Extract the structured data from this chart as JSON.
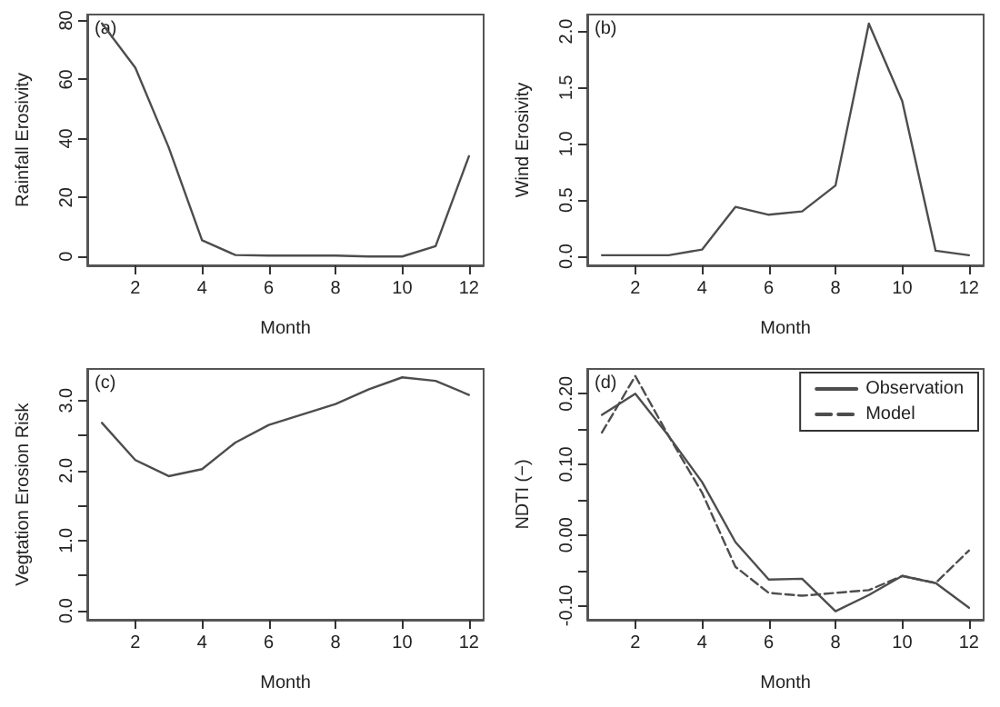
{
  "chart_data": [
    {
      "type": "line",
      "x": [
        1,
        2,
        3,
        4,
        5,
        6,
        7,
        8,
        9,
        10,
        11,
        12
      ],
      "xlabel": "Month",
      "ylabel": "Rainfall Erosivity",
      "annotations": [
        "(a)"
      ],
      "series": [
        {
          "color": "#4d4d4d",
          "values": [
            79,
            64,
            37,
            5.5,
            0.5,
            0.3,
            0.3,
            0.3,
            0,
            0,
            3.5,
            34
          ]
        }
      ],
      "xlim": [
        0.56,
        12.44
      ],
      "xticks": [
        2,
        4,
        6,
        8,
        10,
        12
      ],
      "ylim": [
        -3,
        82
      ],
      "yticks": [
        0,
        20,
        40,
        60,
        80
      ],
      "grid": false,
      "legend": false,
      "marker": "none",
      "line_style": "solid"
    },
    {
      "type": "line",
      "x": [
        1,
        2,
        3,
        4,
        5,
        6,
        7,
        8,
        9,
        10,
        11,
        12
      ],
      "xlabel": "Month",
      "ylabel": "Wind Erosivity",
      "annotations": [
        "(b)"
      ],
      "series": [
        {
          "color": "#4d4d4d",
          "values": [
            0.01,
            0.01,
            0.01,
            0.06,
            0.44,
            0.37,
            0.4,
            0.63,
            2.07,
            1.38,
            0.05,
            0.01
          ]
        }
      ],
      "xlim": [
        0.56,
        12.44
      ],
      "xticks": [
        2,
        4,
        6,
        8,
        10,
        12
      ],
      "ylim": [
        -0.08,
        2.15
      ],
      "yticks": [
        {
          "value": 0,
          "label": "0.0"
        },
        {
          "value": 0.5,
          "label": "0.5"
        },
        {
          "value": 1,
          "label": "1.0"
        },
        {
          "value": 1.5,
          "label": "1.5"
        },
        {
          "value": 2,
          "label": "2.0"
        }
      ],
      "grid": false,
      "legend": false,
      "marker": "none",
      "line_style": "solid"
    },
    {
      "type": "line",
      "x": [
        1,
        2,
        3,
        4,
        5,
        6,
        7,
        8,
        9,
        10,
        11,
        12
      ],
      "xlabel": "Month",
      "ylabel": "Vegtation Erosion Risk",
      "annotations": [
        "(c)"
      ],
      "series": [
        {
          "color": "#4d4d4d",
          "values": [
            2.68,
            2.15,
            1.92,
            2.02,
            2.4,
            2.65,
            2.8,
            2.95,
            3.16,
            3.33,
            3.28,
            3.08
          ]
        }
      ],
      "xlim": [
        0.56,
        12.44
      ],
      "xticks": [
        2,
        4,
        6,
        8,
        10,
        12
      ],
      "ylim": [
        -0.13,
        3.45
      ],
      "yticks": [
        {
          "value": 0,
          "label": "0.0"
        },
        {
          "value": 0.5,
          "label": null
        },
        {
          "value": 1,
          "label": "1.0"
        },
        {
          "value": 1.5,
          "label": null
        },
        {
          "value": 2,
          "label": "2.0"
        },
        {
          "value": 2.5,
          "label": null
        },
        {
          "value": 3,
          "label": "3.0"
        }
      ],
      "grid": false,
      "legend": false,
      "marker": "none",
      "line_style": "solid"
    },
    {
      "type": "line",
      "x": [
        1,
        2,
        3,
        4,
        5,
        6,
        7,
        8,
        9,
        10,
        11,
        12
      ],
      "xlabel": "Month",
      "ylabel": "NDTI (−)",
      "annotations": [
        "(d)"
      ],
      "series": [
        {
          "name": "Observation",
          "color": "#4d4d4d",
          "line_style": "solid",
          "values": [
            0.17,
            0.2,
            0.14,
            0.075,
            -0.01,
            -0.063,
            -0.062,
            -0.108,
            -0.085,
            -0.058,
            -0.068,
            -0.103
          ]
        },
        {
          "name": "Model",
          "color": "#4d4d4d",
          "line_style": "dashed",
          "values": [
            0.145,
            0.225,
            0.14,
            0.06,
            -0.045,
            -0.082,
            -0.086,
            -0.082,
            -0.078,
            -0.058,
            -0.068,
            -0.022
          ]
        }
      ],
      "xlim": [
        0.56,
        12.44
      ],
      "xticks": [
        2,
        4,
        6,
        8,
        10,
        12
      ],
      "ylim": [
        -0.12,
        0.235
      ],
      "yticks": [
        {
          "value": -0.1,
          "label": "-0.10"
        },
        {
          "value": -0.05,
          "label": null
        },
        {
          "value": 0,
          "label": "0.00"
        },
        {
          "value": 0.05,
          "label": null
        },
        {
          "value": 0.1,
          "label": "0.10"
        },
        {
          "value": 0.15,
          "label": null
        },
        {
          "value": 0.2,
          "label": "0.20"
        }
      ],
      "grid": false,
      "legend": "top right",
      "marker": "none"
    }
  ]
}
